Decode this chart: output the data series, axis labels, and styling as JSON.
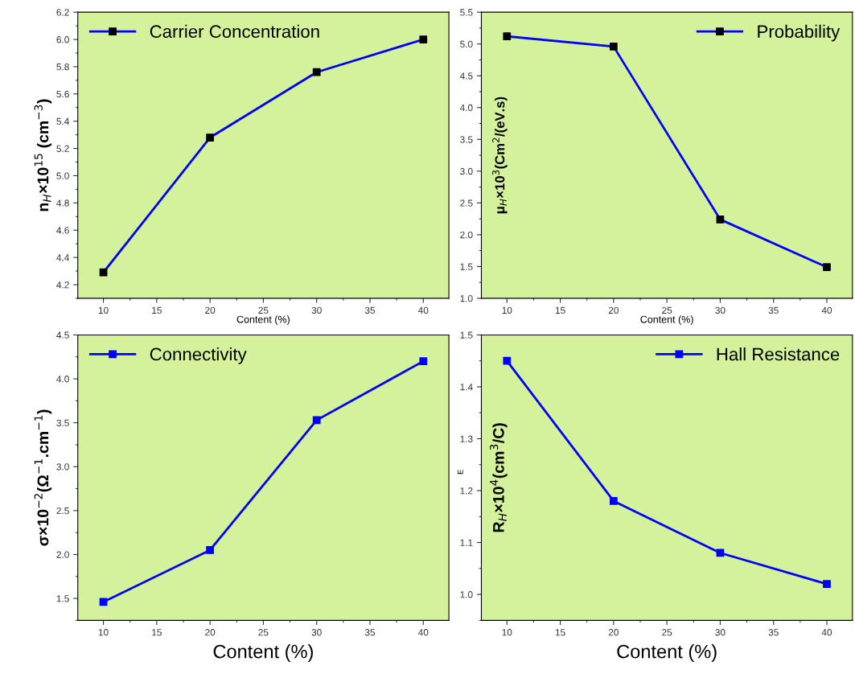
{
  "chart_data": [
    {
      "type": "line",
      "x": [
        10,
        20,
        30,
        40
      ],
      "xlabel": "Content (%)",
      "ylabel": "n$_{H}$×10$^{15}$ (cm$^{−3}$)",
      "xlim": [
        7.6,
        42.4
      ],
      "xticks": [
        10,
        15,
        20,
        25,
        30,
        35,
        40
      ],
      "ylim": [
        4.1,
        6.2
      ],
      "yticks": [
        4.2,
        4.4,
        4.6,
        4.8,
        {
          "value": 5,
          "label": "5.0"
        },
        5.2,
        5.4,
        5.6,
        5.8,
        {
          "value": 6,
          "label": "6.0"
        },
        6.2
      ],
      "marker": "square",
      "line_style": "solid",
      "legend": "top left",
      "grid": false,
      "series": [
        {
          "name": "Carrier Concentration",
          "color": "#0000ff",
          "colors": [
            "#000000",
            "#000000",
            "#000000",
            "#000000"
          ],
          "values": [
            4.29,
            5.28,
            5.76,
            6.0
          ]
        }
      ]
    },
    {
      "type": "line",
      "x": [
        10,
        20,
        30,
        40
      ],
      "xlabel": "Content (%)",
      "ylabel": "μ$_{H}$×10$^{3}$(Cm$^{2}$/(eV.s)",
      "xlim": [
        7.6,
        42.4
      ],
      "xticks": [
        10,
        15,
        20,
        25,
        30,
        35,
        40
      ],
      "ylim": [
        1.0,
        5.5
      ],
      "yticks": [
        {
          "value": 1,
          "label": "1.0"
        },
        1.5,
        {
          "value": 2,
          "label": "2.0"
        },
        2.5,
        {
          "value": 3,
          "label": "3.0"
        },
        3.5,
        {
          "value": 4,
          "label": "4.0"
        },
        4.5,
        {
          "value": 5,
          "label": "5.0"
        },
        5.5
      ],
      "marker": "square",
      "line_style": "solid",
      "legend": "top right",
      "grid": false,
      "series": [
        {
          "name": "Probability",
          "color": "#0000ff",
          "colors": [
            "#000000",
            "#000000",
            "#000000",
            "#000000"
          ],
          "values": [
            5.12,
            4.96,
            2.24,
            1.49
          ]
        }
      ]
    },
    {
      "type": "line",
      "x": [
        10,
        20,
        30,
        40
      ],
      "xlabel": "Content (%)",
      "ylabel": "σ×10$^{−2}$(Ω$^{−1}$.cm$^{−1}$)",
      "xlim": [
        7.6,
        42.4
      ],
      "xticks": [
        10,
        15,
        20,
        25,
        30,
        35,
        40
      ],
      "ylim": [
        1.25,
        4.5
      ],
      "yticks": [
        1.5,
        {
          "value": 2,
          "label": "2.0"
        },
        2.5,
        {
          "value": 3,
          "label": "3.0"
        },
        3.5,
        {
          "value": 4,
          "label": "4.0"
        },
        4.5
      ],
      "marker": "square",
      "line_style": "solid",
      "legend": "top left",
      "grid": false,
      "series": [
        {
          "name": "Connectivity",
          "color": "#0000ff",
          "values": [
            1.46,
            2.05,
            3.53,
            4.2
          ]
        }
      ]
    },
    {
      "type": "line",
      "x": [
        10,
        20,
        30,
        40
      ],
      "xlabel": "Content (%)",
      "ylabel": "R$_{H}$×10$^{4}$(cm$^{3}$/C)",
      "xlim": [
        7.6,
        42.4
      ],
      "xticks": [
        10,
        15,
        20,
        25,
        30,
        35,
        40
      ],
      "ylim": [
        0.95,
        1.5
      ],
      "yticks": [
        {
          "value": 1,
          "label": "1.0"
        },
        1.1,
        1.2,
        1.3,
        1.4,
        1.5
      ],
      "marker": "square",
      "line_style": "solid",
      "legend": "top right",
      "grid": false,
      "annotations": [
        "E"
      ],
      "series": [
        {
          "name": "Hall Resistance",
          "color": "#0000ff",
          "values": [
            1.45,
            1.18,
            1.08,
            1.02
          ]
        }
      ]
    }
  ]
}
